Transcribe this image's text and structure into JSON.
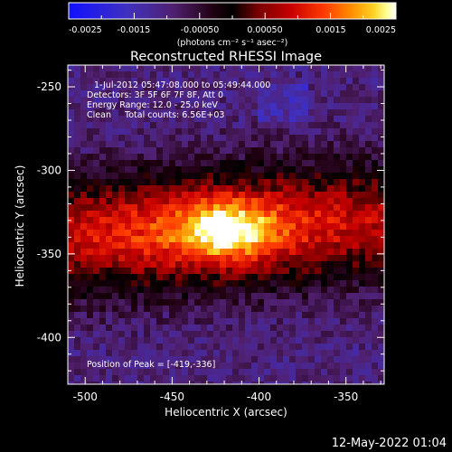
{
  "colorbar": {
    "ticks": [
      "-0.0025",
      "-0.0015",
      "-0.00050",
      "0.00050",
      "0.0015",
      "0.0025"
    ],
    "units": "(photons cm⁻² s⁻¹ asec⁻²)",
    "range": [
      -0.0025,
      0.0025
    ]
  },
  "plot": {
    "title": "Reconstructed RHESSI Image",
    "info": {
      "time_range": "1-Jul-2012 05:47:08.000 to 05:49:44.000",
      "detectors": "Detectors: 3F 5F 6F 7F 8F, Att 0",
      "energy_range": "Energy Range: 12.0 - 25.0 keV",
      "algorithm_counts": "Clean     Total counts: 6.56E+03"
    },
    "peak_label": "Position of Peak = [-419,-336]"
  },
  "footer": {
    "timestamp": "12-May-2022 01:04"
  },
  "chart_data": {
    "type": "heatmap",
    "title": "Reconstructed RHESSI Image",
    "xlabel": "Heliocentric X (arcsec)",
    "ylabel": "Heliocentric Y (arcsec)",
    "xlim": [
      -510,
      -328
    ],
    "ylim": [
      -428,
      -237
    ],
    "x_ticks": [
      -500,
      -450,
      -400,
      -350
    ],
    "y_ticks": [
      -250,
      -300,
      -350,
      -400
    ],
    "x_tick_labels": [
      "-500",
      "-450",
      "-400",
      "-350"
    ],
    "y_tick_labels": [
      "-250",
      "-300",
      "-350",
      "-400"
    ],
    "peak": [
      -419,
      -336
    ],
    "colormap": [
      "#1010ff",
      "#4030c0",
      "#502070",
      "#200010",
      "#000000",
      "#7a0000",
      "#c80000",
      "#ff3a00",
      "#ff8a00",
      "#ffd020",
      "#ffff90",
      "#ffffff"
    ]
  }
}
